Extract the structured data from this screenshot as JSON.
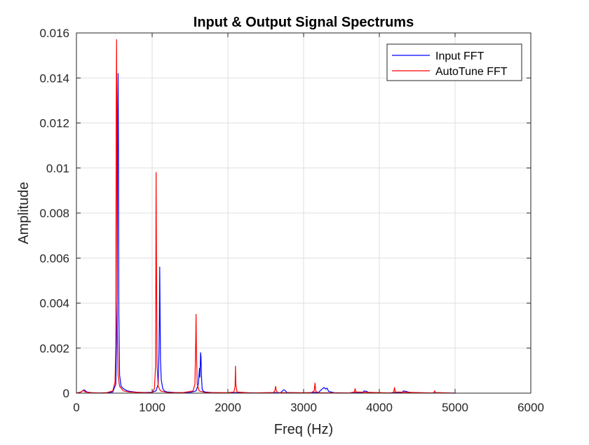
{
  "chart_data": {
    "type": "line",
    "title": "Input & Output Signal Spectrums",
    "xlabel": "Freq (Hz)",
    "ylabel": "Amplitude",
    "xlim": [
      0,
      6000
    ],
    "ylim": [
      0,
      0.016
    ],
    "x_ticks": [
      0,
      1000,
      2000,
      3000,
      4000,
      5000,
      6000
    ],
    "x_tick_labels": [
      "0",
      "1000",
      "2000",
      "3000",
      "4000",
      "5000",
      "6000"
    ],
    "y_ticks": [
      0,
      0.002,
      0.004,
      0.006,
      0.008,
      0.01,
      0.012,
      0.014,
      0.016
    ],
    "y_tick_labels": [
      "0",
      "0.002",
      "0.004",
      "0.006",
      "0.008",
      "0.01",
      "0.012",
      "0.014",
      "0.016"
    ],
    "grid": true,
    "legend_position": "top-right",
    "series": [
      {
        "name": "Input FFT",
        "color": "#0000ff",
        "x": [
          0,
          60,
          80,
          100,
          120,
          140,
          200,
          300,
          400,
          480,
          520,
          540,
          545,
          550,
          555,
          560,
          570,
          590,
          620,
          660,
          700,
          800,
          900,
          1000,
          1050,
          1080,
          1090,
          1095,
          1100,
          1105,
          1110,
          1120,
          1140,
          1160,
          1200,
          1300,
          1400,
          1500,
          1580,
          1610,
          1625,
          1630,
          1635,
          1640,
          1645,
          1650,
          1655,
          1660,
          1670,
          1700,
          1800,
          2000,
          2150,
          2200,
          2500,
          2700,
          2720,
          2740,
          2760,
          2780,
          3000,
          3200,
          3250,
          3270,
          3290,
          3310,
          3330,
          3400,
          3600,
          3780,
          3800,
          3830,
          3860,
          3900,
          4100,
          4300,
          4320,
          4350,
          4380,
          4420,
          4600,
          4800,
          5000
        ],
        "values": [
          0,
          5e-05,
          0.0001,
          0.00015,
          0.0001,
          5e-05,
          2e-05,
          1e-05,
          2e-05,
          5e-05,
          0.0004,
          0.0045,
          0.0126,
          0.0142,
          0.0108,
          0.0035,
          0.0008,
          0.0003,
          0.0002,
          0.00012,
          8e-05,
          4e-05,
          3e-05,
          4e-05,
          0.0001,
          0.0004,
          0.0018,
          0.0032,
          0.0056,
          0.0033,
          0.0015,
          0.0006,
          0.0002,
          0.0001,
          5e-05,
          3e-05,
          2e-05,
          3e-05,
          0.0001,
          0.0004,
          0.0011,
          0.0007,
          0.0012,
          0.0018,
          0.0016,
          0.0009,
          0.0005,
          0.0002,
          0.0001,
          5e-05,
          2e-05,
          1e-05,
          3e-05,
          2e-05,
          1e-05,
          3e-05,
          0.0001,
          0.00015,
          0.0001,
          3e-05,
          1e-05,
          4e-05,
          0.0002,
          0.00025,
          0.00018,
          0.00022,
          8e-05,
          2e-05,
          1e-05,
          3e-05,
          0.0001,
          8e-05,
          3e-05,
          1e-05,
          1e-05,
          3e-05,
          0.0001,
          8e-05,
          5e-05,
          2e-05,
          1e-05,
          1e-05,
          0
        ]
      },
      {
        "name": "AutoTune FFT",
        "color": "#ff0000",
        "x": [
          0,
          60,
          90,
          120,
          200,
          300,
          400,
          480,
          510,
          520,
          525,
          530,
          535,
          540,
          550,
          570,
          620,
          700,
          900,
          1000,
          1030,
          1045,
          1052,
          1058,
          1065,
          1080,
          1110,
          1200,
          1400,
          1540,
          1565,
          1575,
          1580,
          1585,
          1595,
          1620,
          1700,
          2000,
          2080,
          2095,
          2100,
          2105,
          2120,
          2300,
          2600,
          2620,
          2630,
          2640,
          2660,
          3100,
          3140,
          3150,
          3160,
          3180,
          3600,
          3670,
          3680,
          3690,
          4150,
          4190,
          4200,
          4210,
          4700,
          4720,
          4730,
          4740,
          5000
        ],
        "values": [
          0,
          5e-05,
          0.00012,
          5e-05,
          2e-05,
          1e-05,
          2e-05,
          0.0001,
          0.0005,
          0.0021,
          0.0127,
          0.0157,
          0.0095,
          0.0028,
          0.0008,
          0.0003,
          0.0001,
          5e-05,
          2e-05,
          3e-05,
          0.0002,
          0.0012,
          0.0098,
          0.0052,
          0.0012,
          0.0003,
          0.0001,
          3e-05,
          2e-05,
          0.0001,
          0.0004,
          0.0023,
          0.0035,
          0.0018,
          0.0004,
          0.0001,
          3e-05,
          2e-05,
          5e-05,
          0.0003,
          0.0012,
          0.0004,
          5e-05,
          1e-05,
          3e-05,
          0.0001,
          0.0003,
          0.0001,
          2e-05,
          2e-05,
          0.0001,
          0.00045,
          0.0001,
          2e-05,
          1e-05,
          5e-05,
          0.0002,
          5e-05,
          1e-05,
          5e-05,
          0.00025,
          5e-05,
          1e-05,
          3e-05,
          0.0001,
          3e-05,
          0
        ]
      }
    ]
  }
}
